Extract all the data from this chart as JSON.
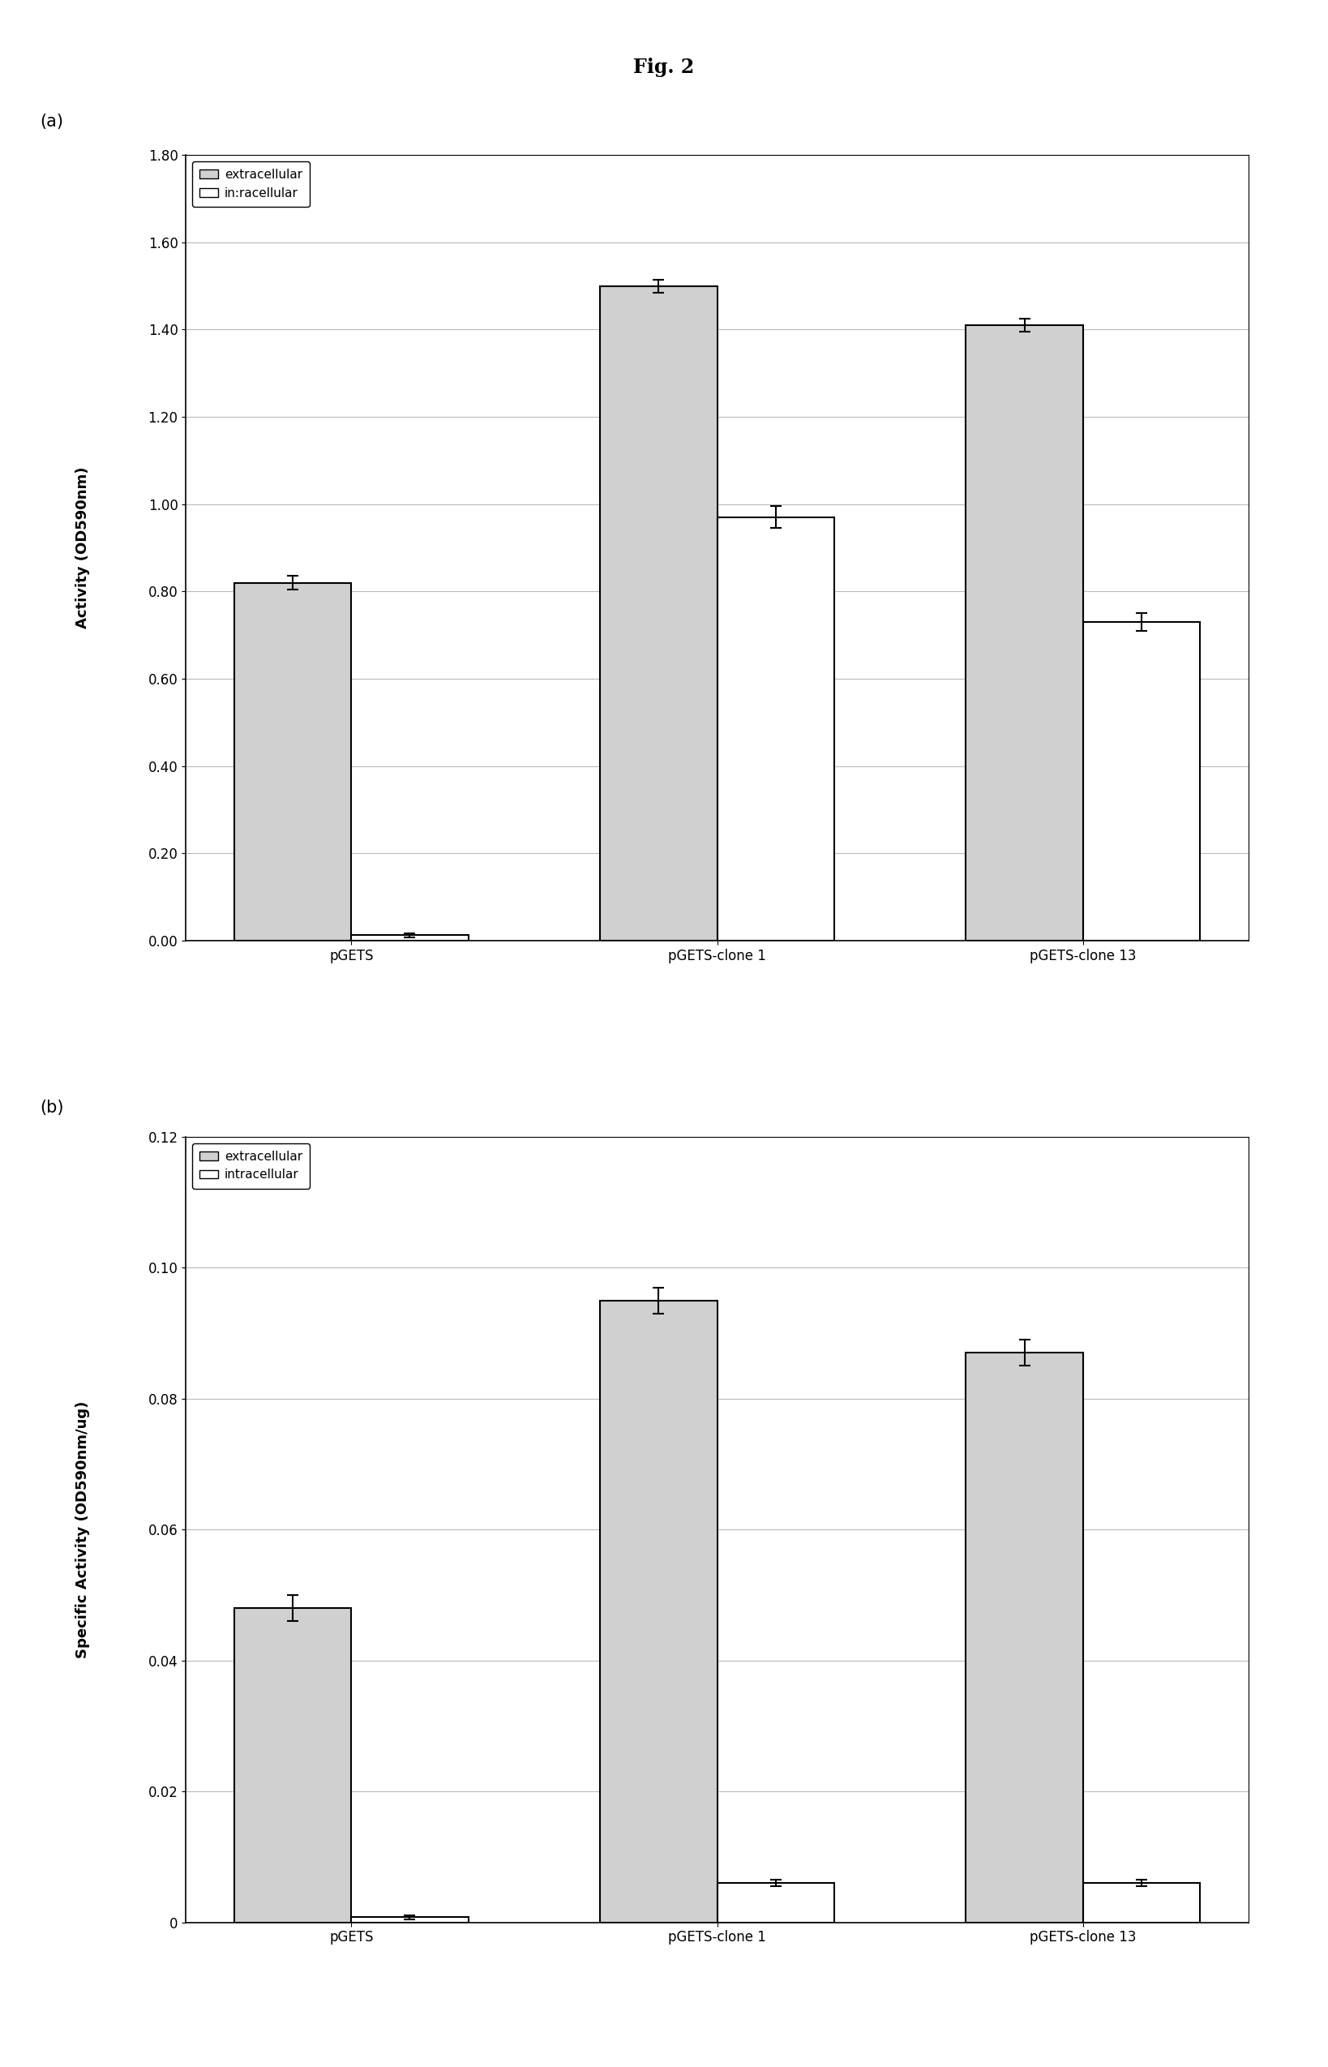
{
  "title": "Fig. 2",
  "panel_a": {
    "label": "(a)",
    "categories": [
      "pGETS",
      "pGETS-clone 1",
      "pGETS-clone 13"
    ],
    "extracellular": [
      0.82,
      1.5,
      1.41
    ],
    "intracellular": [
      0.012,
      0.97,
      0.73
    ],
    "extracellular_err": [
      0.015,
      0.015,
      0.015
    ],
    "intracellular_err": [
      0.005,
      0.025,
      0.02
    ],
    "ylabel": "Activity (OD590nm)",
    "ylim": [
      0.0,
      1.8
    ],
    "yticks": [
      0.0,
      0.2,
      0.4,
      0.6,
      0.8,
      1.0,
      1.2,
      1.4,
      1.6,
      1.8
    ],
    "legend_extracellular": "extracellular",
    "legend_intracellular": "in:racellular"
  },
  "panel_b": {
    "label": "(b)",
    "categories": [
      "pGETS",
      "pGETS-clone 1",
      "pGETS-clone 13"
    ],
    "extracellular": [
      0.048,
      0.095,
      0.087
    ],
    "intracellular": [
      0.0008,
      0.006,
      0.006
    ],
    "extracellular_err": [
      0.002,
      0.002,
      0.002
    ],
    "intracellular_err": [
      0.0003,
      0.0005,
      0.0005
    ],
    "ylabel": "Specific Activity (OD590nm/ug)",
    "ylim": [
      0.0,
      0.12
    ],
    "yticks": [
      0,
      0.02,
      0.04,
      0.06,
      0.08,
      0.1,
      0.12
    ],
    "legend_extracellular": "extracellular",
    "legend_intracellular": "intracellular"
  },
  "bar_width": 0.32,
  "extracellular_color": "#d0d0d0",
  "intracellular_color": "#ffffff",
  "bar_edgecolor": "#000000",
  "background_color": "#ffffff",
  "grid_color": "#bbbbbb",
  "title_fontsize": 17,
  "label_fontsize": 15,
  "axis_label_fontsize": 13,
  "tick_fontsize": 12,
  "legend_fontsize": 11
}
